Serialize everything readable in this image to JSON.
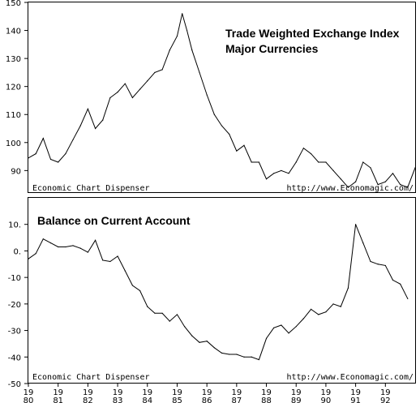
{
  "chart_data": [
    {
      "type": "line",
      "title": "Trade Weighted Exchange Index",
      "subtitle": "Major Currencies",
      "credit_left": "Economic Chart Dispenser",
      "credit_right": "http://www.Economagic.com/",
      "ylim": [
        82,
        150
      ],
      "y_ticks": [
        "150",
        "140",
        "130",
        "120",
        "110",
        "100",
        "90"
      ],
      "y_tick_values": [
        150,
        140,
        130,
        120,
        110,
        100,
        90
      ],
      "x_range": [
        1980.0,
        1993.0
      ],
      "x": [
        1980.0,
        1980.25,
        1980.5,
        1980.75,
        1981.0,
        1981.25,
        1981.5,
        1981.75,
        1982.0,
        1982.25,
        1982.5,
        1982.75,
        1983.0,
        1983.25,
        1983.5,
        1983.75,
        1984.0,
        1984.25,
        1984.5,
        1984.75,
        1985.0,
        1985.17,
        1985.33,
        1985.5,
        1985.75,
        1986.0,
        1986.25,
        1986.5,
        1986.75,
        1987.0,
        1987.25,
        1987.5,
        1987.75,
        1988.0,
        1988.25,
        1988.5,
        1988.75,
        1989.0,
        1989.25,
        1989.5,
        1989.75,
        1990.0,
        1990.25,
        1990.5,
        1990.75,
        1991.0,
        1991.25,
        1991.5,
        1991.75,
        1992.0,
        1992.25,
        1992.5,
        1992.75,
        1993.0
      ],
      "values": [
        94.5,
        96,
        101.5,
        94,
        93,
        96,
        101,
        106,
        112,
        105,
        108,
        116,
        118,
        121,
        116,
        119,
        122,
        125,
        126,
        133,
        138,
        146,
        140,
        133,
        125,
        117,
        110,
        106,
        103,
        97,
        99,
        93,
        93,
        87,
        89,
        90,
        89,
        93,
        98,
        96,
        93,
        93,
        90,
        87,
        84,
        86,
        93,
        91,
        85,
        86,
        89,
        85,
        84,
        91
      ]
    },
    {
      "type": "line",
      "title": "Balance on Current Account",
      "credit_left": "Economic Chart Dispenser",
      "credit_right": "http://www.Economagic.com/",
      "ylim": [
        -50,
        20
      ],
      "y_ticks": [
        "10.",
        "0.",
        "-10",
        "-20",
        "-30",
        "-40",
        "-50"
      ],
      "y_tick_values": [
        10,
        0,
        -10,
        -20,
        -30,
        -40,
        -50
      ],
      "x_tick_labels": [
        {
          "top": "19",
          "bottom": "80"
        },
        {
          "top": "19",
          "bottom": "81"
        },
        {
          "top": "19",
          "bottom": "82"
        },
        {
          "top": "19",
          "bottom": "83"
        },
        {
          "top": "19",
          "bottom": "84"
        },
        {
          "top": "19",
          "bottom": "85"
        },
        {
          "top": "19",
          "bottom": "86"
        },
        {
          "top": "19",
          "bottom": "87"
        },
        {
          "top": "19",
          "bottom": "88"
        },
        {
          "top": "19",
          "bottom": "89"
        },
        {
          "top": "19",
          "bottom": "90"
        },
        {
          "top": "19",
          "bottom": "91"
        },
        {
          "top": "19",
          "bottom": "92"
        }
      ],
      "x_range": [
        1980.0,
        1993.0
      ],
      "x": [
        1980.0,
        1980.25,
        1980.5,
        1980.75,
        1981.0,
        1981.25,
        1981.5,
        1981.75,
        1982.0,
        1982.25,
        1982.5,
        1982.75,
        1983.0,
        1983.25,
        1983.5,
        1983.75,
        1984.0,
        1984.25,
        1984.5,
        1984.75,
        1985.0,
        1985.25,
        1985.5,
        1985.75,
        1986.0,
        1986.25,
        1986.5,
        1986.75,
        1987.0,
        1987.25,
        1987.5,
        1987.75,
        1988.0,
        1988.25,
        1988.5,
        1988.75,
        1989.0,
        1989.25,
        1989.5,
        1989.75,
        1990.0,
        1990.25,
        1990.5,
        1990.75,
        1991.0,
        1991.25,
        1991.5,
        1991.75,
        1992.0,
        1992.25,
        1992.5,
        1992.75
      ],
      "values": [
        -3,
        -1,
        4.5,
        3,
        1.5,
        1.5,
        2,
        1,
        -0.5,
        4,
        -3.5,
        -4,
        -2,
        -7.5,
        -13,
        -15,
        -21,
        -23.5,
        -23.5,
        -26.5,
        -24,
        -28.5,
        -32,
        -34.5,
        -34,
        -36.5,
        -38.5,
        -39,
        -39,
        -40,
        -40,
        -41,
        -33,
        -29,
        -28,
        -31,
        -28.5,
        -25.5,
        -22,
        -24,
        -23,
        -20,
        -21,
        -14,
        10,
        3,
        -4,
        -5,
        -5.5,
        -11,
        -12.5,
        -18
      ]
    }
  ]
}
